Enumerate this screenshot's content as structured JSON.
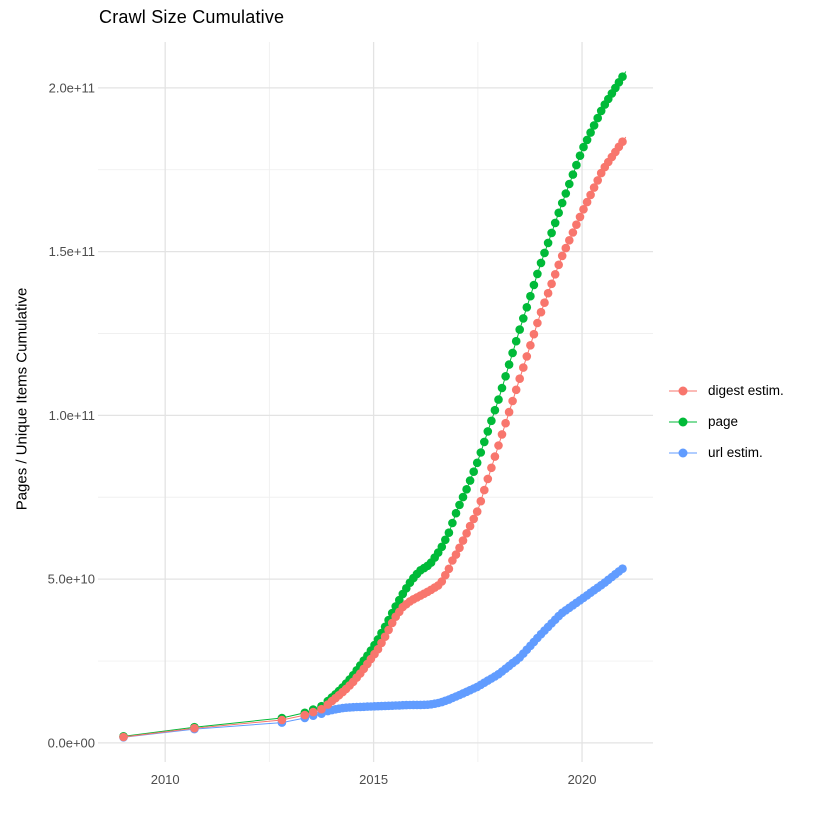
{
  "title": "Crawl Size Cumulative",
  "axes": {
    "y_label": "Pages / Unique Items Cumulative",
    "x_range_years": [
      2008.58,
      2021.75
    ],
    "y_range_e9": [
      -4,
      214
    ],
    "x_ticks": [
      {
        "label": "2010",
        "year": 2010
      },
      {
        "label": "2015",
        "year": 2015
      },
      {
        "label": "2020",
        "year": 2020
      }
    ],
    "x_minor_years": [
      2012.5,
      2017.5
    ],
    "y_ticks": [
      {
        "label": "0.0e+00",
        "value_e9": 0
      },
      {
        "label": "5.0e+10",
        "value_e9": 50
      },
      {
        "label": "1.0e+11",
        "value_e9": 100
      },
      {
        "label": "1.5e+11",
        "value_e9": 150
      },
      {
        "label": "2.0e+11",
        "value_e9": 200
      }
    ],
    "y_minor_e9": [
      25,
      75,
      125,
      175
    ],
    "grid": "on",
    "major_grid_color": "#e3e3e3",
    "minor_grid_color": "#f0f0f0"
  },
  "legend": {
    "position": "right",
    "items": [
      {
        "key": "digest",
        "label": "digest estim.",
        "color": "#F8766D"
      },
      {
        "key": "page",
        "label": "page",
        "color": "#00BA38"
      },
      {
        "key": "url",
        "label": "url estim.",
        "color": "#619CFF"
      }
    ]
  },
  "chart_data": {
    "type": "scatter",
    "title": "Crawl Size Cumulative",
    "xlabel": "",
    "ylabel": "Pages / Unique Items Cumulative",
    "x_unit": "year (decimal)",
    "y_unit": "count, value expressed in billions (1e9)",
    "xlim": [
      2008.58,
      2021.75
    ],
    "ylim_e9": [
      -4,
      214
    ],
    "legend_position": "right",
    "dense_dots_from_year": 2014.0,
    "dot_step_years": 0.085,
    "series": [
      {
        "name": "digest estim.",
        "key": "digest",
        "color": "#F8766D",
        "points_year_vs_e9": [
          [
            2009.0,
            1.8
          ],
          [
            2010.7,
            4.5
          ],
          [
            2012.8,
            7.0
          ],
          [
            2013.35,
            8.5
          ],
          [
            2013.55,
            9.4
          ],
          [
            2013.75,
            10.3
          ],
          [
            2013.9,
            11.7
          ],
          [
            2014.1,
            13.8
          ],
          [
            2014.3,
            16.0
          ],
          [
            2014.5,
            18.5
          ],
          [
            2014.7,
            21.5
          ],
          [
            2014.9,
            25.0
          ],
          [
            2015.1,
            28.5
          ],
          [
            2015.3,
            33.0
          ],
          [
            2015.5,
            38.0
          ],
          [
            2015.7,
            41.5
          ],
          [
            2015.9,
            43.5
          ],
          [
            2016.1,
            44.8
          ],
          [
            2016.35,
            46.5
          ],
          [
            2016.6,
            48.5
          ],
          [
            2016.8,
            53.0
          ],
          [
            2016.9,
            56.0
          ],
          [
            2017.0,
            58.0
          ],
          [
            2017.25,
            64.5
          ],
          [
            2017.5,
            71.0
          ],
          [
            2018.0,
            91.0
          ],
          [
            2018.5,
            111.0
          ],
          [
            2019.0,
            131.0
          ],
          [
            2019.5,
            148.0
          ],
          [
            2020.0,
            162.0
          ],
          [
            2020.5,
            175.0
          ],
          [
            2021.05,
            185.0
          ]
        ]
      },
      {
        "name": "page",
        "key": "page",
        "color": "#00BA38",
        "points_year_vs_e9": [
          [
            2009.0,
            2.0
          ],
          [
            2010.7,
            4.8
          ],
          [
            2012.8,
            7.6
          ],
          [
            2013.35,
            9.2
          ],
          [
            2013.55,
            10.2
          ],
          [
            2013.75,
            11.2
          ],
          [
            2013.9,
            12.8
          ],
          [
            2014.1,
            15.0
          ],
          [
            2014.3,
            17.5
          ],
          [
            2014.5,
            20.5
          ],
          [
            2014.7,
            24.0
          ],
          [
            2014.9,
            27.5
          ],
          [
            2015.1,
            31.5
          ],
          [
            2015.3,
            36.0
          ],
          [
            2015.5,
            41.0
          ],
          [
            2015.7,
            45.5
          ],
          [
            2015.9,
            49.5
          ],
          [
            2016.1,
            52.5
          ],
          [
            2016.35,
            54.5
          ],
          [
            2016.6,
            59.0
          ],
          [
            2016.8,
            64.0
          ],
          [
            2017.0,
            71.0
          ],
          [
            2017.25,
            78.0
          ],
          [
            2017.5,
            86.0
          ],
          [
            2018.0,
            105.0
          ],
          [
            2018.5,
            126.0
          ],
          [
            2019.0,
            146.0
          ],
          [
            2019.5,
            164.0
          ],
          [
            2020.0,
            181.0
          ],
          [
            2020.5,
            194.0
          ],
          [
            2021.05,
            205.0
          ]
        ]
      },
      {
        "name": "url estim.",
        "key": "url",
        "color": "#619CFF",
        "points_year_vs_e9": [
          [
            2009.0,
            1.7
          ],
          [
            2010.7,
            4.2
          ],
          [
            2012.8,
            6.2
          ],
          [
            2013.35,
            7.6
          ],
          [
            2013.55,
            8.3
          ],
          [
            2013.75,
            8.9
          ],
          [
            2013.9,
            9.7
          ],
          [
            2014.1,
            10.3
          ],
          [
            2014.3,
            10.7
          ],
          [
            2014.5,
            10.9
          ],
          [
            2014.7,
            11.0
          ],
          [
            2014.9,
            11.1
          ],
          [
            2015.1,
            11.2
          ],
          [
            2015.3,
            11.3
          ],
          [
            2015.5,
            11.4
          ],
          [
            2015.7,
            11.5
          ],
          [
            2015.9,
            11.6
          ],
          [
            2016.1,
            11.6
          ],
          [
            2016.35,
            11.7
          ],
          [
            2016.6,
            12.3
          ],
          [
            2016.8,
            13.2
          ],
          [
            2017.0,
            14.3
          ],
          [
            2017.25,
            15.7
          ],
          [
            2017.5,
            17.2
          ],
          [
            2018.0,
            21.0
          ],
          [
            2018.5,
            26.0
          ],
          [
            2019.0,
            33.0
          ],
          [
            2019.5,
            39.5
          ],
          [
            2020.0,
            44.0
          ],
          [
            2020.5,
            48.5
          ],
          [
            2021.05,
            54.0
          ]
        ]
      }
    ]
  }
}
